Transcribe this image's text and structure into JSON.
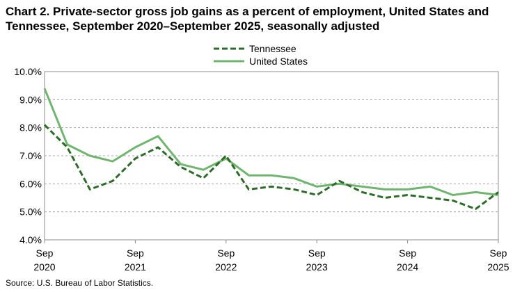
{
  "chart_data": {
    "type": "line",
    "title": "Chart 2. Private-sector gross job gains as a percent of employment, United States and Tennessee, September 2020–September 2025, seasonally adjusted",
    "xlabel": "",
    "ylabel": "",
    "ylim": [
      4.0,
      10.0
    ],
    "y_ticks": [
      "4.0%",
      "5.0%",
      "6.0%",
      "7.0%",
      "8.0%",
      "9.0%",
      "10.0%"
    ],
    "y_tick_values": [
      4,
      5,
      6,
      7,
      8,
      9,
      10
    ],
    "x_ticks": [
      {
        "month": "Sep",
        "year": "2020",
        "index": 0
      },
      {
        "month": "Sep",
        "year": "2021",
        "index": 4
      },
      {
        "month": "Sep",
        "year": "2022",
        "index": 8
      },
      {
        "month": "Sep",
        "year": "2023",
        "index": 12
      },
      {
        "month": "Sep",
        "year": "2024",
        "index": 16
      },
      {
        "month": "Sep",
        "year": "2025",
        "index": 20
      }
    ],
    "x": [
      "Sep 2020",
      "Dec 2020",
      "Mar 2021",
      "Jun 2021",
      "Sep 2021",
      "Dec 2021",
      "Mar 2022",
      "Jun 2022",
      "Sep 2022",
      "Dec 2022",
      "Mar 2023",
      "Jun 2023",
      "Sep 2023",
      "Dec 2023",
      "Mar 2024",
      "Jun 2024",
      "Sep 2024",
      "Dec 2024",
      "Mar 2025",
      "Jun 2025",
      "Sep 2025"
    ],
    "grid": true,
    "legend_position": "top-center",
    "series": [
      {
        "name": "Tennessee",
        "style": "dashed",
        "color": "#2e6b2a",
        "values": [
          8.1,
          7.3,
          5.8,
          6.1,
          6.9,
          7.3,
          6.6,
          6.2,
          7.0,
          5.8,
          5.9,
          5.8,
          5.6,
          6.1,
          5.7,
          5.5,
          5.6,
          5.5,
          5.4,
          5.1,
          5.7
        ]
      },
      {
        "name": "United States",
        "style": "solid",
        "color": "#6fb56f",
        "values": [
          9.4,
          7.4,
          7.0,
          6.8,
          7.3,
          7.7,
          6.7,
          6.5,
          6.9,
          6.3,
          6.3,
          6.2,
          5.9,
          6.0,
          5.9,
          5.8,
          5.8,
          5.9,
          5.6,
          5.7,
          5.6
        ]
      }
    ]
  },
  "source": "Source: U.S. Bureau of Labor Statistics."
}
